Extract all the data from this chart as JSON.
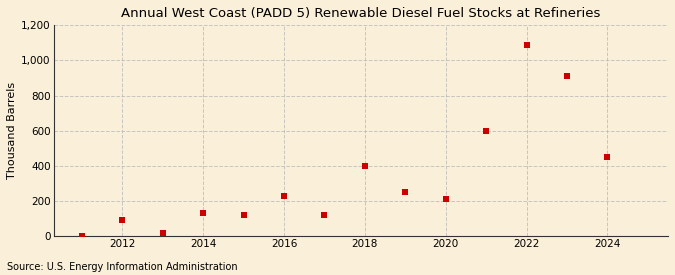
{
  "title": "Annual West Coast (PADD 5) Renewable Diesel Fuel Stocks at Refineries",
  "ylabel": "Thousand Barrels",
  "source": "Source: U.S. Energy Information Administration",
  "background_color": "#faefd8",
  "years": [
    2011,
    2012,
    2013,
    2014,
    2015,
    2016,
    2017,
    2018,
    2019,
    2020,
    2021,
    2022,
    2023,
    2024
  ],
  "values": [
    2,
    90,
    20,
    130,
    120,
    230,
    120,
    400,
    250,
    210,
    600,
    1090,
    910,
    450
  ],
  "marker_color": "#cc0000",
  "marker_size": 4,
  "ylim": [
    0,
    1200
  ],
  "yticks": [
    0,
    200,
    400,
    600,
    800,
    1000,
    1200
  ],
  "ytick_labels": [
    "0",
    "200",
    "400",
    "600",
    "800",
    "1,000",
    "1,200"
  ],
  "xlim": [
    2010.3,
    2025.5
  ],
  "xticks": [
    2012,
    2014,
    2016,
    2018,
    2020,
    2022,
    2024
  ],
  "title_fontsize": 9.5,
  "label_fontsize": 8,
  "tick_fontsize": 7.5,
  "source_fontsize": 7,
  "grid_color": "#bbbbbb",
  "grid_style": "--",
  "grid_alpha": 0.8
}
